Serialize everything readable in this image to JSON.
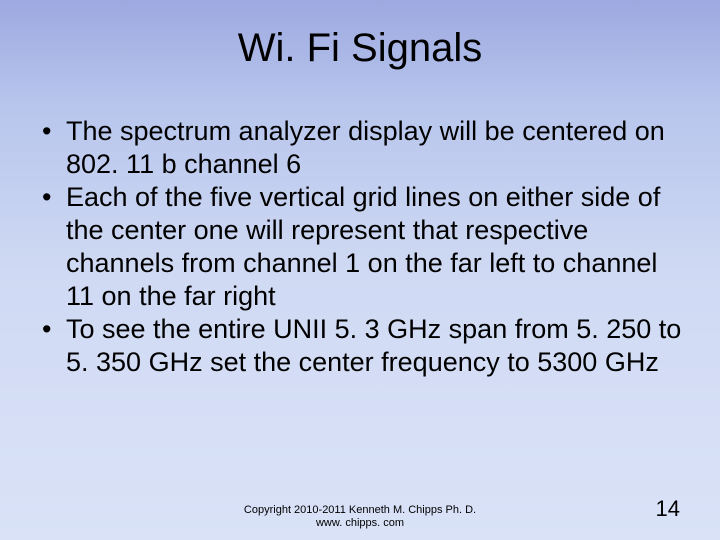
{
  "title": "Wi. Fi Signals",
  "bullets": [
    "The spectrum analyzer display will be centered on 802. 11 b channel 6",
    "Each of the five vertical grid lines on either side of the center one will represent that respective channels from channel 1 on the far left to channel 11 on the far right",
    "To see the entire UNII 5. 3 GHz span from 5. 250 to 5. 350 GHz set the center frequency to 5300 GHz"
  ],
  "footer_line1": "Copyright 2010-2011 Kenneth M. Chipps Ph. D.",
  "footer_line2": "www. chipps. com",
  "page_number": "14",
  "colors": {
    "bg_top": "#9da9e0",
    "bg_bottom": "#d9e2f7",
    "text": "#000000"
  },
  "typography": {
    "title_fontsize": 40,
    "body_fontsize": 27,
    "footer_fontsize": 11,
    "pagenum_fontsize": 22
  }
}
